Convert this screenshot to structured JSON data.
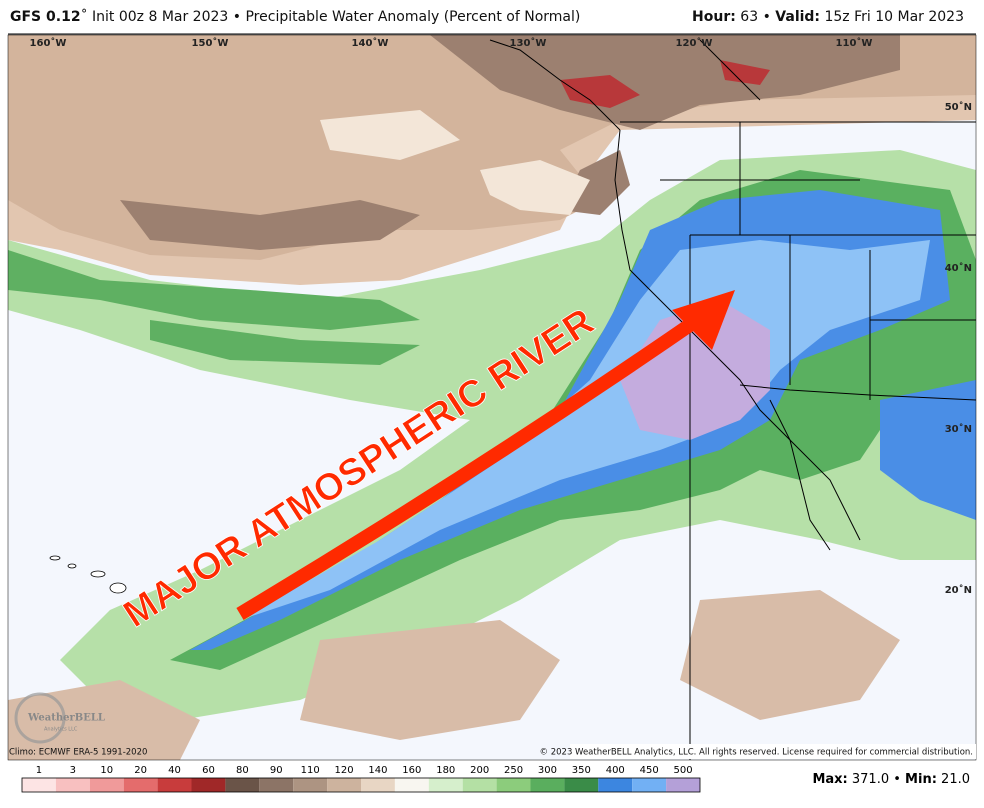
{
  "header": {
    "model": "GFS 0.12",
    "degree": "˚",
    "init": "Init 00z 8 Mar 2023",
    "bullet": "•",
    "product": "Precipitable Water Anomaly (Percent of Normal)",
    "hour_label": "Hour:",
    "hour": "63",
    "valid_label": "Valid:",
    "valid": "15z Fri 10 Mar 2023"
  },
  "map": {
    "longitudes": [
      "160˚W",
      "150˚W",
      "140˚W",
      "130˚W",
      "120˚W",
      "110˚W"
    ],
    "latitudes": [
      "50˚N",
      "40˚N",
      "30˚N",
      "20˚N"
    ],
    "annotation": "MAJOR ATMOSPHERIC RIVER",
    "logo": "WeatherBELL",
    "logo_sub": "Analytics LLC",
    "climo": "Climo: ECMWF ERA-5 1991-2020",
    "copyright": "© 2023 WeatherBELL Analytics, LLC. All rights reserved. License required for commercial distribution."
  },
  "legend": {
    "labels": [
      "1",
      "3",
      "10",
      "20",
      "40",
      "60",
      "80",
      "90",
      "110",
      "120",
      "140",
      "160",
      "180",
      "200",
      "250",
      "300",
      "350",
      "400",
      "450",
      "500"
    ],
    "colors": [
      "#fde4e4",
      "#f8c0c0",
      "#f09a9a",
      "#e46c6c",
      "#c83c3c",
      "#a02828",
      "#6a5448",
      "#8c7466",
      "#ad9482",
      "#cdb39e",
      "#e8d6c4",
      "#f8f6f0",
      "#d6efcc",
      "#b4e0a4",
      "#8ccc7c",
      "#5aae5e",
      "#3a8c48",
      "#3c86e0",
      "#72b0f4",
      "#b4a0d8"
    ],
    "max_label": "Max:",
    "max": "371.0",
    "min_label": "Min:",
    "min": "21.0"
  }
}
